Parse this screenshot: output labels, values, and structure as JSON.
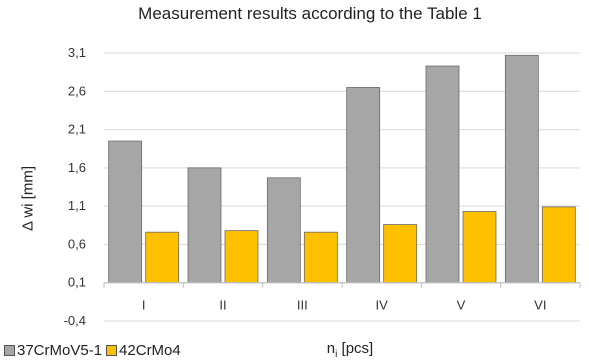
{
  "chart_data": {
    "type": "bar",
    "title": "Measurement results according to the Table 1",
    "xlabel": "n",
    "xlabel_sub": "i",
    "xlabel_unit": " [pcs]",
    "ylabel": "Δ wi [mm]",
    "ylim": [
      -0.4,
      3.1
    ],
    "yticks": [
      "3,1",
      "2,6",
      "2,1",
      "1,6",
      "1,1",
      "0,6",
      "0,1",
      "-0,4"
    ],
    "ytick_values": [
      3.1,
      2.6,
      2.1,
      1.6,
      1.1,
      0.6,
      0.1,
      -0.4
    ],
    "baseline": 0.1,
    "categories": [
      "I",
      "II",
      "III",
      "IV",
      "V",
      "VI"
    ],
    "series": [
      {
        "name": "37CrMoV5-1",
        "color": "#a6a6a6",
        "values": [
          1.95,
          1.6,
          1.47,
          2.65,
          2.93,
          3.07
        ]
      },
      {
        "name": "42CrMo4",
        "color": "#ffc000",
        "values": [
          0.76,
          0.78,
          0.76,
          0.86,
          1.03,
          1.09
        ]
      }
    ],
    "grid": true,
    "legend_position": "bottom-left"
  }
}
